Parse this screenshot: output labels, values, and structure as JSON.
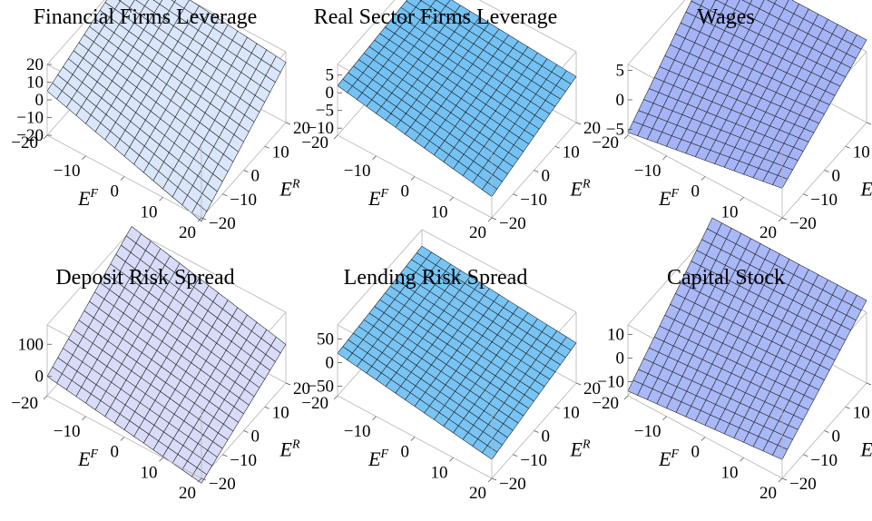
{
  "chart_data": [
    {
      "type": "surface3d",
      "title": "Financial Firms Leverage",
      "xlabel": "E",
      "xlabel_sup": "F",
      "ylabel": "E",
      "ylabel_sup": "R",
      "x_ticks": [
        "−20",
        "−10",
        "0",
        "10",
        "20"
      ],
      "y_ticks": [
        "20",
        "10",
        "0",
        "−10",
        "−20"
      ],
      "z_ticks": [
        "20",
        "10",
        "0",
        "−10",
        "−20"
      ],
      "xlim": [
        -20,
        20
      ],
      "ylim": [
        -20,
        20
      ],
      "zlim": [
        -20,
        20
      ],
      "corner_z": {
        "xmin_ymin": 5,
        "xmax_ymin": -22,
        "xmin_ymax": 24,
        "xmax_ymax": 14
      },
      "color": "#dae6fb"
    },
    {
      "type": "surface3d",
      "title": "Real Sector Firms Leverage",
      "xlabel": "E",
      "xlabel_sup": "F",
      "ylabel": "E",
      "ylabel_sup": "R",
      "x_ticks": [
        "−20",
        "−10",
        "0",
        "10",
        "20"
      ],
      "y_ticks": [
        "20",
        "10",
        "0",
        "−10",
        "−20"
      ],
      "z_ticks": [
        "5",
        "0",
        "−5",
        "−10"
      ],
      "xlim": [
        -20,
        20
      ],
      "ylim": [
        -20,
        20
      ],
      "zlim": [
        -12,
        8
      ],
      "corner_z": {
        "xmin_ymin": 2,
        "xmax_ymin": -6,
        "xmin_ymax": 4.5,
        "xmax_ymax": 1
      },
      "color": "#74c2f4"
    },
    {
      "type": "surface3d",
      "title": "Wages",
      "xlabel": "E",
      "xlabel_sup": "F",
      "ylabel": "E",
      "ylabel_sup": "R",
      "x_ticks": [
        "−20",
        "−10",
        "0",
        "10",
        "20"
      ],
      "y_ticks": [
        "20",
        "10",
        "0",
        "−10",
        "−20"
      ],
      "z_ticks": [
        "5",
        "0",
        "−5"
      ],
      "xlim": [
        -20,
        20
      ],
      "ylim": [
        -20,
        20
      ],
      "zlim": [
        -6,
        6
      ],
      "corner_z": {
        "xmin_ymin": -5.5,
        "xmax_ymin": -1,
        "xmin_ymax": 8,
        "xmax_ymax": 8
      },
      "color": "#a4b4f6"
    },
    {
      "type": "surface3d",
      "title": "Deposit Risk Spread",
      "xlabel": "E",
      "xlabel_sup": "F",
      "ylabel": "E",
      "ylabel_sup": "R",
      "x_ticks": [
        "−20",
        "−10",
        "0",
        "10",
        "20"
      ],
      "y_ticks": [
        "20",
        "10",
        "0",
        "−10",
        "−20"
      ],
      "z_ticks": [
        "100",
        "0"
      ],
      "xlim": [
        -20,
        20
      ],
      "ylim": [
        -20,
        20
      ],
      "zlim": [
        -60,
        160
      ],
      "corner_z": {
        "xmin_ymin": 0,
        "xmax_ymin": -75,
        "xmin_ymax": 170,
        "xmax_ymax": 60
      },
      "color": "#d8dcf8"
    },
    {
      "type": "surface3d",
      "title": "Lending Risk Spread",
      "xlabel": "E",
      "xlabel_sup": "F",
      "ylabel": "E",
      "ylabel_sup": "R",
      "x_ticks": [
        "−20",
        "−10",
        "0",
        "10",
        "20"
      ],
      "y_ticks": [
        "20",
        "10",
        "0",
        "−10",
        "−20"
      ],
      "z_ticks": [
        "50",
        "0",
        "−50"
      ],
      "xlim": [
        -20,
        20
      ],
      "ylim": [
        -20,
        20
      ],
      "zlim": [
        -70,
        80
      ],
      "corner_z": {
        "xmin_ymin": 20,
        "xmax_ymin": -30,
        "xmin_ymax": 45,
        "xmax_ymax": 15
      },
      "color": "#78c4f4"
    },
    {
      "type": "surface3d",
      "title": "Capital Stock",
      "xlabel": "E",
      "xlabel_sup": "F",
      "ylabel": "E",
      "ylabel_sup": "R",
      "x_ticks": [
        "−20",
        "−10",
        "0",
        "10",
        "20"
      ],
      "y_ticks": [
        "20",
        "10",
        "0",
        "−10",
        "−20"
      ],
      "z_ticks": [
        "10",
        "0",
        "−10"
      ],
      "xlim": [
        -20,
        20
      ],
      "ylim": [
        -20,
        20
      ],
      "zlim": [
        -16,
        14
      ],
      "corner_z": {
        "xmin_ymin": -14,
        "xmax_ymin": -8,
        "xmin_ymax": 19,
        "xmax_ymax": 19
      },
      "color": "#a9b8f6"
    }
  ]
}
